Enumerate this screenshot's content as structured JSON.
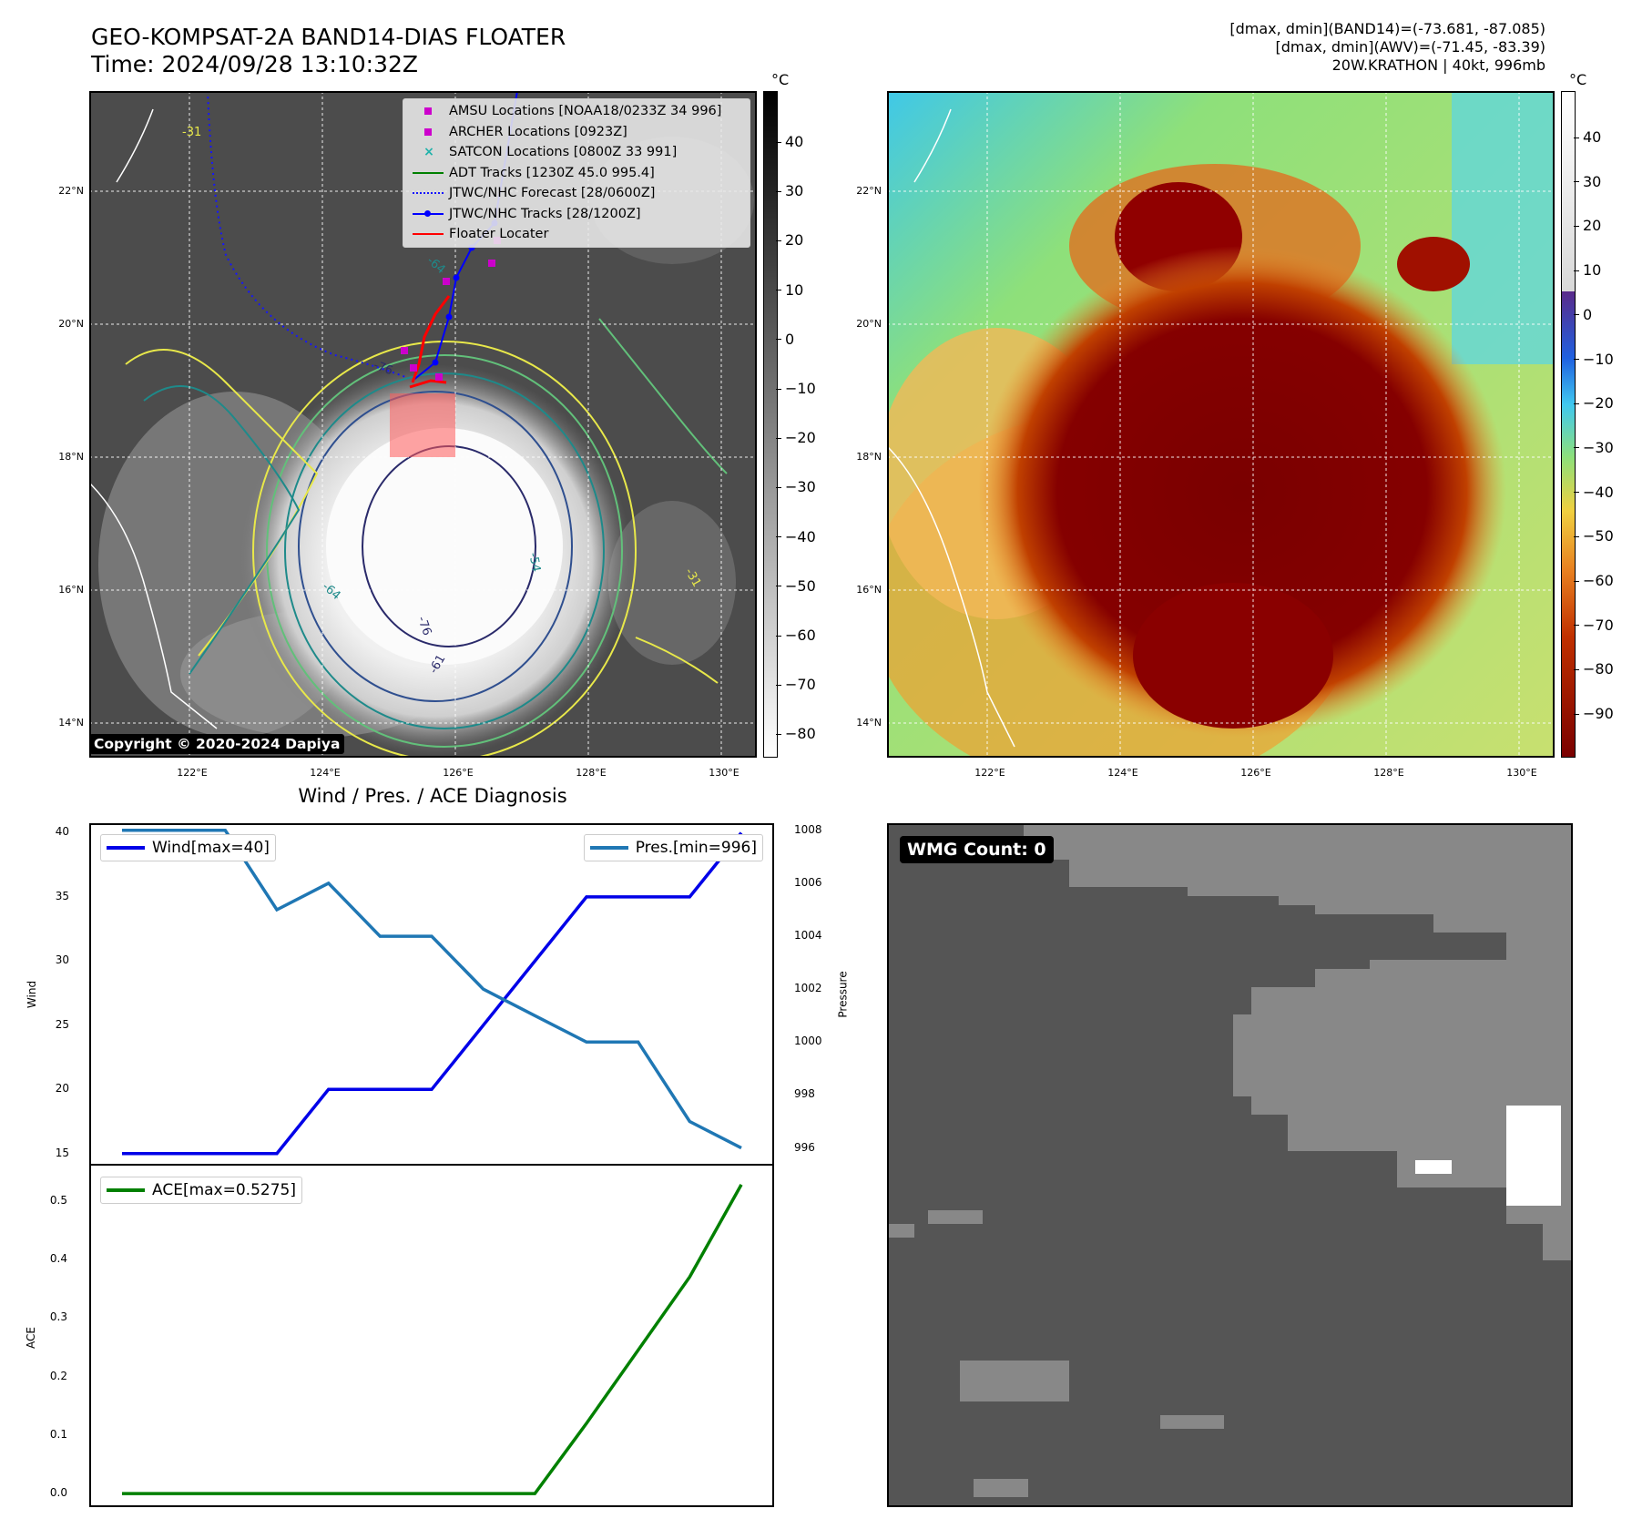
{
  "header": {
    "title_line1": "GEO-KOMPSAT-2A BAND14-DIAS FLOATER",
    "title_line2": "Time: 2024/09/28 13:10:32Z",
    "right_line1": "[dmax, dmin](BAND14)=(-73.681, -87.085)",
    "right_line2": "[dmax, dmin](AWV)=(-71.45, -83.39)",
    "right_line3": "20W.KRATHON | 40kt, 996mb"
  },
  "map": {
    "lat_labels": [
      "22°N",
      "20°N",
      "18°N",
      "16°N",
      "14°N"
    ],
    "lon_labels": [
      "122°E",
      "124°E",
      "126°E",
      "128°E",
      "130°E"
    ],
    "contour_labels": [
      "-31",
      "-64",
      "-76",
      "-54",
      "-76",
      "-64",
      "-31",
      "-61"
    ],
    "copyright": "Copyright © 2020-2024 Dapiya"
  },
  "legend": {
    "amsu": "AMSU Locations [NOAA18/0233Z 34 996]",
    "archer": "ARCHER Locations [0923Z]",
    "satcon": "SATCON Locations [0800Z 33 991]",
    "adt": "ADT Tracks [1230Z 45.0 995.4]",
    "forecast": "JTWC/NHC Forecast [28/0600Z]",
    "tracks": "JTWC/NHC Tracks [28/1200Z]",
    "floater": "Floater Locater"
  },
  "colorbar_ir": {
    "unit": "°C",
    "ticks": [
      "40",
      "30",
      "20",
      "10",
      "0",
      "−10",
      "−20",
      "−30",
      "−40",
      "−50",
      "−60",
      "−70",
      "−80"
    ]
  },
  "colorbar_wv": {
    "unit": "°C",
    "ticks": [
      "40",
      "30",
      "20",
      "10",
      "0",
      "−10",
      "−20",
      "−30",
      "−40",
      "−50",
      "−60",
      "−70",
      "−80",
      "−90"
    ]
  },
  "colors": {
    "ir_gray": "#4a4a4a",
    "storm_core": "#f4f4f4",
    "wv_green": "#8ee07a",
    "wv_core": "#7a0000",
    "wmg_dark": "#555555",
    "wmg_light": "#888888"
  },
  "diagnosis": {
    "title": "Wind / Pres. / ACE Diagnosis",
    "wind_legend": "Wind[max=40]",
    "pres_legend": "Pres.[min=996]",
    "ace_legend": "ACE[max=0.5275]",
    "wind_ylabel": "Wind",
    "pres_ylabel": "Pressure",
    "ace_ylabel": "ACE",
    "wind_ticks": [
      "40",
      "35",
      "30",
      "25",
      "20",
      "15"
    ],
    "pres_ticks": [
      "1008",
      "1006",
      "1004",
      "1002",
      "1000",
      "998",
      "996"
    ],
    "ace_ticks": [
      "0.5",
      "0.4",
      "0.3",
      "0.2",
      "0.1",
      "0.0"
    ]
  },
  "chart_data": [
    {
      "type": "line",
      "x": [
        0,
        1,
        2,
        3,
        4,
        5,
        6,
        7,
        8,
        9,
        10,
        11,
        12
      ],
      "series": [
        {
          "name": "Wind[max=40]",
          "values": [
            15,
            15,
            15,
            15,
            20,
            20,
            20,
            25,
            30,
            35,
            35,
            35,
            40
          ]
        },
        {
          "name": "Pres.[min=996]",
          "values": [
            1008,
            1008,
            1008,
            1005,
            1006,
            1004,
            1004,
            1002,
            1001,
            1000,
            1000,
            997,
            996
          ]
        }
      ],
      "title": "Wind / Pres. / ACE Diagnosis",
      "ylabel": "Wind",
      "ylim": [
        14.2,
        40.6
      ],
      "y2label": "Pressure",
      "y2lim": [
        995.4,
        1008.2
      ]
    },
    {
      "type": "line",
      "x": [
        0,
        1,
        2,
        3,
        4,
        5,
        6,
        7,
        8,
        9,
        10,
        11,
        12
      ],
      "series": [
        {
          "name": "ACE[max=0.5275]",
          "values": [
            0,
            0,
            0,
            0,
            0,
            0,
            0,
            0,
            0,
            0.12,
            0.245,
            0.37,
            0.5275
          ]
        }
      ],
      "ylabel": "ACE",
      "ylim": [
        -0.02,
        0.56
      ]
    }
  ],
  "wmg": {
    "label": "WMG Count: 0"
  }
}
